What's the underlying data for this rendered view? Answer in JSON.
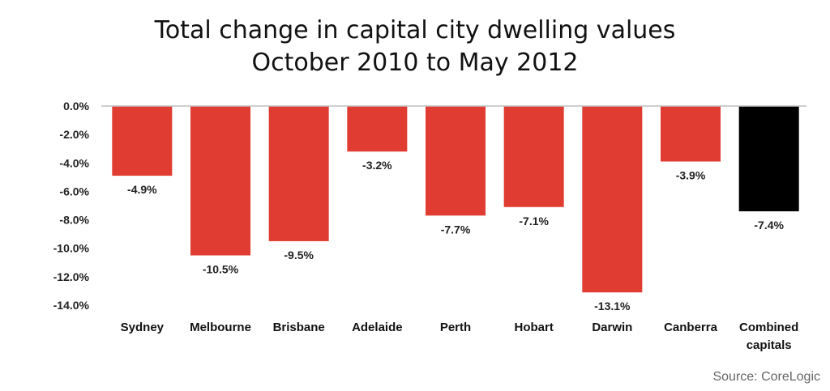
{
  "chart_data": {
    "type": "bar",
    "title_lines": [
      "Total change in capital city dwelling values",
      "October 2010  to May 2012"
    ],
    "categories": [
      [
        "Sydney"
      ],
      [
        "Melbourne"
      ],
      [
        "Brisbane"
      ],
      [
        "Adelaide"
      ],
      [
        "Perth"
      ],
      [
        "Hobart"
      ],
      [
        "Darwin"
      ],
      [
        "Canberra"
      ],
      [
        "Combined",
        "capitals"
      ]
    ],
    "values": [
      -4.9,
      -10.5,
      -9.5,
      -3.2,
      -7.7,
      -7.1,
      -13.1,
      -3.9,
      -7.4
    ],
    "value_labels": [
      "-4.9%",
      "-10.5%",
      "-9.5%",
      "-3.2%",
      "-7.7%",
      "-7.1%",
      "-13.1%",
      "-3.9%",
      "-7.4%"
    ],
    "bar_colors": [
      "#e03c31",
      "#e03c31",
      "#e03c31",
      "#e03c31",
      "#e03c31",
      "#e03c31",
      "#e03c31",
      "#e03c31",
      "#000000"
    ],
    "ylim": [
      -14,
      0
    ],
    "yticks": [
      0,
      -2,
      -4,
      -6,
      -8,
      -10,
      -12,
      -14
    ],
    "ytick_labels": [
      "0.0%",
      "-2.0%",
      "-4.0%",
      "-6.0%",
      "-8.0%",
      "-10.0%",
      "-12.0%",
      "-14.0%"
    ],
    "grid": false,
    "legend": "none",
    "source": "Source: CoreLogic"
  }
}
